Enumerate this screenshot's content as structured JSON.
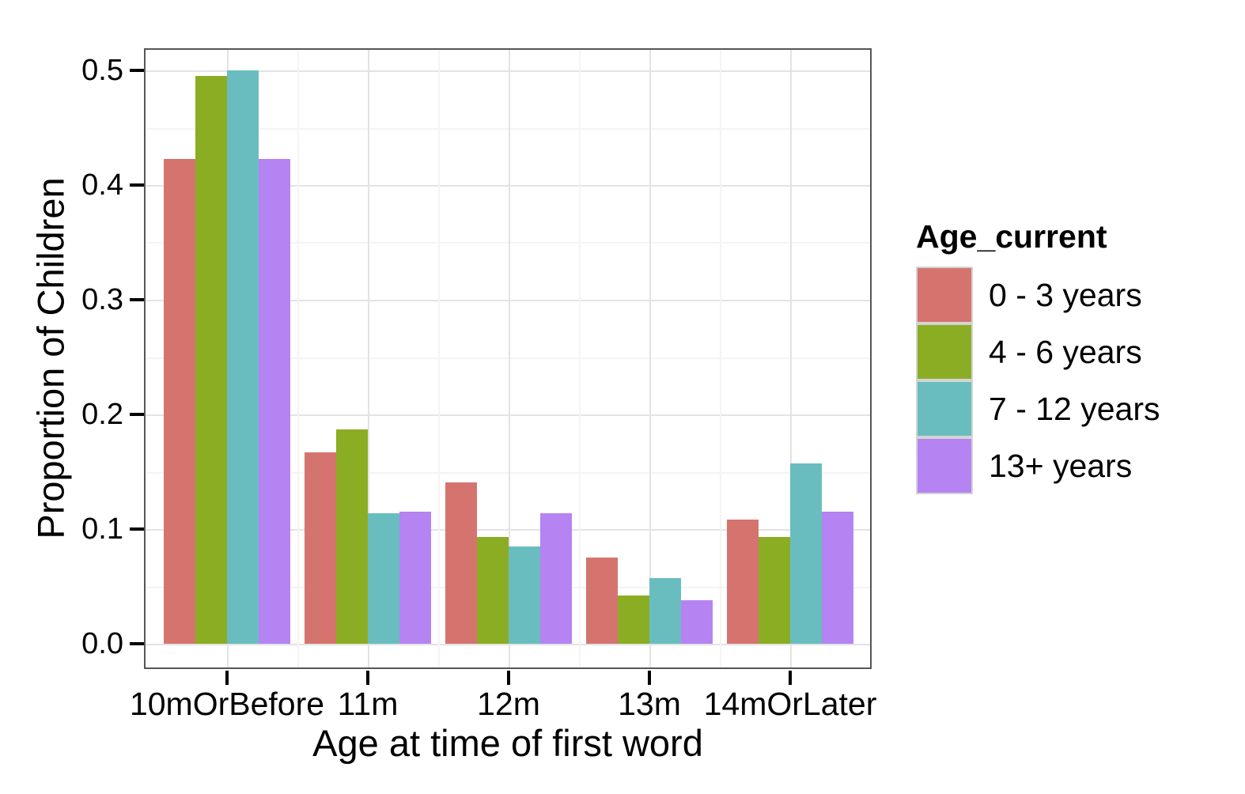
{
  "chart_data": {
    "type": "bar",
    "title": "",
    "xlabel": "Age at time of first word",
    "ylabel": "Proportion of Children",
    "categories": [
      "10mOrBefore",
      "11m",
      "12m",
      "13m",
      "14mOrLater"
    ],
    "series": [
      {
        "name": "0 - 3 years",
        "color": "#D5746F",
        "values": [
          0.423,
          0.167,
          0.141,
          0.075,
          0.108
        ]
      },
      {
        "name": "4 - 6 years",
        "color": "#8BAD24",
        "values": [
          0.495,
          0.187,
          0.093,
          0.042,
          0.093
        ]
      },
      {
        "name": "7 - 12 years",
        "color": "#69BDBF",
        "values": [
          0.5,
          0.114,
          0.085,
          0.057,
          0.157
        ]
      },
      {
        "name": "13+ years",
        "color": "#B583F2",
        "values": [
          0.423,
          0.115,
          0.114,
          0.038,
          0.115
        ]
      }
    ],
    "ylim": [
      0,
      0.5
    ],
    "yticks": [
      0,
      0.1,
      0.2,
      0.3,
      0.4,
      0.5
    ],
    "ytick_labels": [
      "0.0",
      "0.1",
      "0.2",
      "0.3",
      "0.4",
      "0.5"
    ],
    "minor_grid_step": 0.05,
    "grid": "major and minor, horizontal and vertical",
    "legend": {
      "title": "Age_current",
      "position": "right"
    }
  },
  "style": {
    "background": "#FFFFFF",
    "text_color": "#000000",
    "panel_border": "#565656",
    "grid_major_color": "#E3E3E3",
    "grid_minor_color": "#F4F4F4",
    "tick_color": "#000000",
    "legend_key_border": "#D4D4D4"
  }
}
